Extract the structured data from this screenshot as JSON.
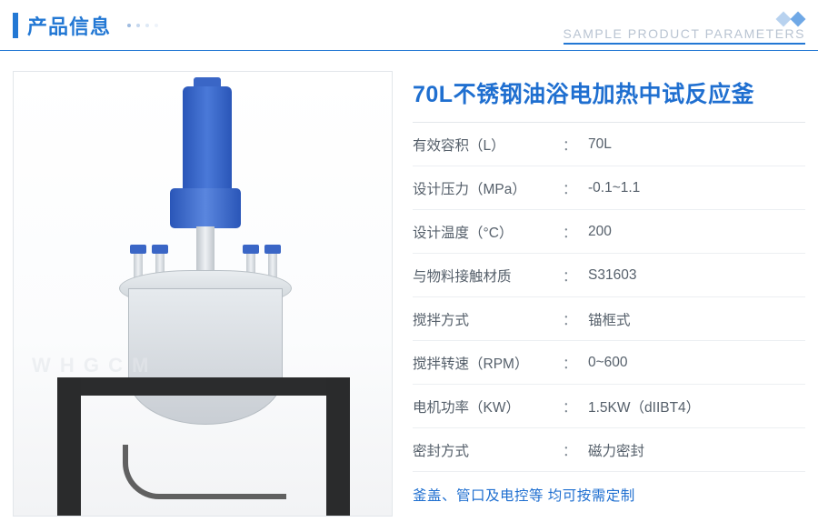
{
  "header": {
    "title": "产品信息",
    "subtitle": "SAMPLE PRODUCT PARAMETERS"
  },
  "product": {
    "title": "70L不锈钢油浴电加热中试反应釜",
    "watermark": "W H G C M",
    "footnote": "釜盖、管口及电控等 均可按需定制"
  },
  "specs": [
    {
      "label": "有效容积（L）",
      "value": "70L"
    },
    {
      "label": "设计压力（MPa）",
      "value": "-0.1~1.1"
    },
    {
      "label": "设计温度（°C）",
      "value": "200"
    },
    {
      "label": "与物料接触材质",
      "value": "S31603"
    },
    {
      "label": "搅拌方式",
      "value": "锚框式"
    },
    {
      "label": "搅拌转速（RPM）",
      "value": "0~600"
    },
    {
      "label": "电机功率（KW）",
      "value": "1.5KW（dIIBT4）"
    },
    {
      "label": "密封方式",
      "value": "磁力密封"
    }
  ],
  "colors": {
    "brand": "#2378d4",
    "brand_text": "#1f6fd0",
    "label_text": "#56606b",
    "divider": "#eceff2",
    "header_rule": "#2378d4",
    "subtitle_text": "#b9c4d2"
  }
}
